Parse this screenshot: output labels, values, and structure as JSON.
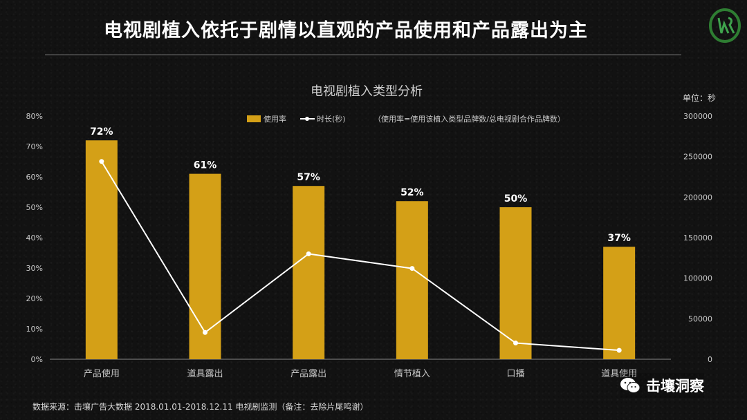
{
  "slide": {
    "title": "电视剧植入依托于剧情以直观的产品使用和产品露出为主",
    "source": "数据来源：击壤广告大数据 2018.01.01-2018.12.11 电视剧监测（备注：去除片尾鸣谢）",
    "watermark": "击壤洞察"
  },
  "colors": {
    "bar": "#D4A017",
    "line": "#ffffff",
    "text": "#c8c8c8",
    "axis": "#8a8a8a",
    "logo_green": "#2e7d32"
  },
  "icons": {
    "logo": "jr-logo-icon",
    "wechat": "wechat-icon"
  },
  "chart_data": {
    "type": "bar",
    "title": "电视剧植入类型分析",
    "note": "（使用率=使用该植入类型品牌数/总电视剧合作品牌数）",
    "y2_unit_label": "单位：秒",
    "categories": [
      "产品使用",
      "道具露出",
      "产品露出",
      "情节植入",
      "口播",
      "道具使用"
    ],
    "series": [
      {
        "name": "使用率",
        "type": "bar",
        "axis": "left",
        "values": [
          72,
          61,
          57,
          52,
          50,
          37
        ],
        "labels": [
          "72%",
          "61%",
          "57%",
          "52%",
          "50%",
          "37%"
        ]
      },
      {
        "name": "时长(秒)",
        "type": "line",
        "axis": "right",
        "values": [
          244000,
          33000,
          130000,
          112000,
          20000,
          11000
        ]
      }
    ],
    "y_ticks": [
      "0%",
      "10%",
      "20%",
      "30%",
      "40%",
      "50%",
      "60%",
      "70%",
      "80%"
    ],
    "y2_ticks": [
      "0",
      "50000",
      "100000",
      "150000",
      "200000",
      "250000",
      "300000"
    ],
    "ylim": [
      0,
      80
    ],
    "y2lim": [
      0,
      300000
    ],
    "legend_position": "top-center",
    "grid": false
  }
}
